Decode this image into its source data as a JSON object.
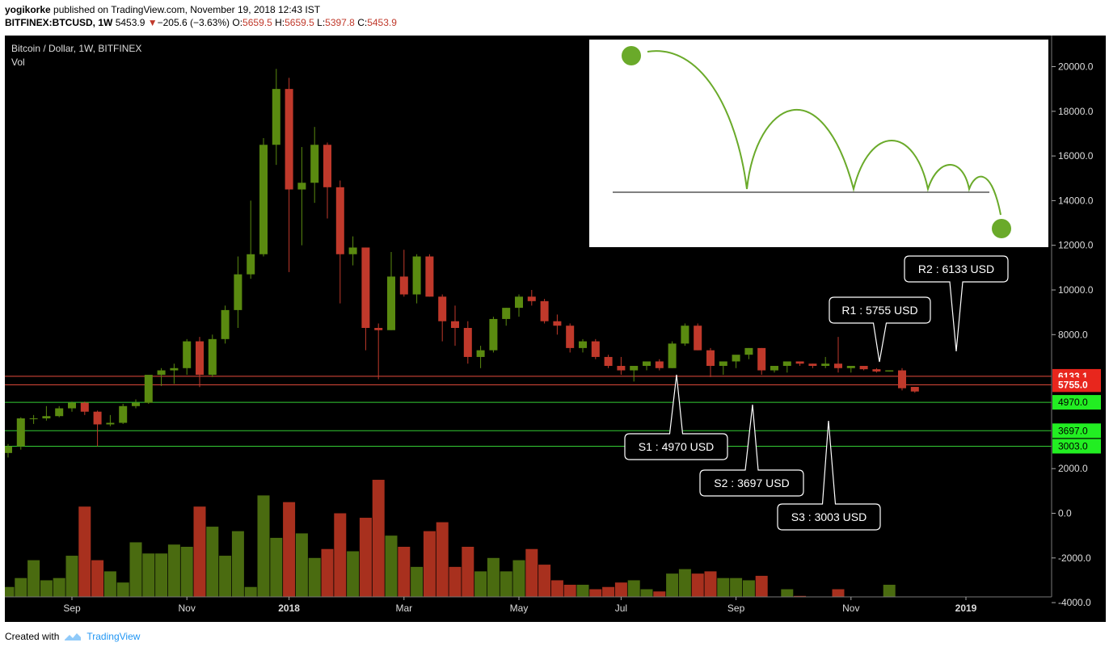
{
  "header": {
    "author": "yogikorke",
    "published": "published on TradingView.com, November 19, 2018 12:43 IST",
    "symbol": "BITFINEX:BTCUSD, 1W",
    "last": "5453.9",
    "change": "−205.6 (−3.63%)",
    "o_label": "O:",
    "o_value": "5659.5",
    "h_label": "H:",
    "h_value": "5659.5",
    "l_label": "L:",
    "l_value": "5397.8",
    "c_label": "C:",
    "c_value": "5453.9"
  },
  "footer": {
    "created_with": "Created with",
    "brand": "TradingView"
  },
  "colors": {
    "up": "#5a8a10",
    "down": "#c0392b",
    "resistance": "#e74c3c",
    "support": "#33cc33",
    "bg": "#000000"
  },
  "chart_data": {
    "type": "candlestick",
    "title": "Bitcoin / Dollar, 1W, BITFINEX",
    "subtitle": "Vol",
    "y_range": [
      -4600,
      20500
    ],
    "y_ticks": [
      "20000.0",
      "18000.0",
      "16000.0",
      "14000.0",
      "12000.0",
      "10000.0",
      "8000.0",
      "2000.0",
      "0.0",
      "-2000.0",
      "-4000.0"
    ],
    "y_tick_values": [
      20000,
      18000,
      16000,
      14000,
      12000,
      10000,
      8000,
      2000,
      0,
      -2000,
      -4000
    ],
    "x_labels": [
      {
        "label": "Sep",
        "i": 5,
        "bold": false
      },
      {
        "label": "Nov",
        "i": 14,
        "bold": false
      },
      {
        "label": "2018",
        "i": 22,
        "bold": true
      },
      {
        "label": "Mar",
        "i": 31,
        "bold": false
      },
      {
        "label": "May",
        "i": 40,
        "bold": false
      },
      {
        "label": "Jul",
        "i": 48,
        "bold": false
      },
      {
        "label": "Sep",
        "i": 57,
        "bold": false
      },
      {
        "label": "Nov",
        "i": 66,
        "bold": false
      },
      {
        "label": "2019",
        "i": 75,
        "bold": true
      }
    ],
    "candles": [
      [
        2700,
        3100,
        2500,
        3000,
        -3300
      ],
      [
        3000,
        4300,
        2850,
        4250,
        -2900
      ],
      [
        4250,
        4400,
        4000,
        4250,
        -2100
      ],
      [
        4250,
        4800,
        4150,
        4350,
        -3000
      ],
      [
        4350,
        4800,
        4300,
        4700,
        -2900
      ],
      [
        4700,
        5000,
        4550,
        4950,
        -1900
      ],
      [
        4950,
        5000,
        4400,
        4550,
        300
      ],
      [
        4550,
        4600,
        3000,
        3980,
        -2100
      ],
      [
        3980,
        4400,
        3900,
        4050,
        -2600
      ],
      [
        4050,
        4900,
        4000,
        4800,
        -3100
      ],
      [
        4800,
        5100,
        4700,
        4950,
        -1300
      ],
      [
        4950,
        6000,
        4900,
        6200,
        -1800
      ],
      [
        6200,
        6500,
        5700,
        6400,
        -1800
      ],
      [
        6400,
        6700,
        5800,
        6500,
        -1400
      ],
      [
        6500,
        7800,
        6200,
        7700,
        -1500
      ],
      [
        7700,
        7900,
        5650,
        6200,
        300
      ],
      [
        6200,
        8000,
        6100,
        7800,
        -600
      ],
      [
        7800,
        9300,
        7600,
        9100,
        -1900
      ],
      [
        9100,
        11500,
        8300,
        10700,
        -800
      ],
      [
        10700,
        14000,
        10500,
        11600,
        -3300
      ],
      [
        11600,
        16800,
        11500,
        16500,
        800
      ],
      [
        16500,
        19900,
        15600,
        19000,
        -1100
      ],
      [
        19000,
        19500,
        10800,
        14500,
        500
      ],
      [
        14500,
        16400,
        12000,
        14800,
        -900
      ],
      [
        14800,
        17300,
        13900,
        16500,
        -2000
      ],
      [
        16500,
        16600,
        13200,
        14600,
        -1600
      ],
      [
        14600,
        14900,
        9400,
        11600,
        0
      ],
      [
        11600,
        12400,
        11100,
        11900,
        -1700
      ],
      [
        11900,
        11900,
        7300,
        8300,
        -200
      ],
      [
        8300,
        8500,
        6000,
        8200,
        1500
      ],
      [
        8200,
        11700,
        8200,
        10600,
        -1000
      ],
      [
        10600,
        11800,
        9700,
        9800,
        -1500
      ],
      [
        9800,
        11600,
        9400,
        11500,
        -2400
      ],
      [
        11500,
        11600,
        9700,
        9700,
        -800
      ],
      [
        9700,
        9800,
        7700,
        8600,
        -400
      ],
      [
        8600,
        9300,
        7500,
        8300,
        -2400
      ],
      [
        8300,
        8600,
        6700,
        7000,
        -1500
      ],
      [
        7000,
        7500,
        6500,
        7300,
        -2600
      ],
      [
        7300,
        8800,
        7200,
        8700,
        -2000
      ],
      [
        8700,
        9200,
        8400,
        9200,
        -2600
      ],
      [
        9200,
        9800,
        8800,
        9700,
        -2100
      ],
      [
        9700,
        10000,
        9300,
        9500,
        -1600
      ],
      [
        9500,
        9600,
        8500,
        8600,
        -2300
      ],
      [
        8600,
        8900,
        8000,
        8400,
        -3000
      ],
      [
        8400,
        8500,
        7200,
        7400,
        -3200
      ],
      [
        7400,
        7800,
        7200,
        7700,
        -3200
      ],
      [
        7700,
        7800,
        6900,
        7000,
        -3400
      ],
      [
        7000,
        7100,
        6500,
        6600,
        -3300
      ],
      [
        6600,
        7000,
        6200,
        6400,
        -3100
      ],
      [
        6400,
        6500,
        5900,
        6600,
        -3000
      ],
      [
        6600,
        6800,
        6400,
        6800,
        -3400
      ],
      [
        6800,
        6900,
        6400,
        6500,
        -3500
      ],
      [
        6500,
        7700,
        6500,
        7600,
        -2700
      ],
      [
        7600,
        8500,
        7500,
        8400,
        -2500
      ],
      [
        8400,
        8500,
        7300,
        7300,
        -2700
      ],
      [
        7300,
        7400,
        6100,
        6600,
        -2600
      ],
      [
        6600,
        6700,
        6200,
        6800,
        -2900
      ],
      [
        6800,
        7000,
        6500,
        7100,
        -2900
      ],
      [
        7100,
        7400,
        6900,
        7400,
        -3000
      ],
      [
        7400,
        7400,
        6200,
        6400,
        -2800
      ],
      [
        6400,
        6600,
        6300,
        6600,
        -3800
      ],
      [
        6600,
        6700,
        6300,
        6800,
        -3400
      ],
      [
        6800,
        6800,
        6600,
        6700,
        -3700
      ],
      [
        6700,
        6700,
        6500,
        6600,
        -4000
      ],
      [
        6600,
        7000,
        6500,
        6700,
        -3800
      ],
      [
        6700,
        7900,
        6300,
        6500,
        -3400
      ],
      [
        6500,
        6600,
        6300,
        6600,
        -4100
      ],
      [
        6600,
        6600,
        6400,
        6450,
        -3900
      ],
      [
        6450,
        6500,
        6300,
        6350,
        -4200
      ],
      [
        6350,
        6400,
        6350,
        6400,
        -3200
      ],
      [
        6400,
        6500,
        5500,
        5600,
        -4600
      ],
      [
        5659.5,
        5659.5,
        5397.8,
        5453.9,
        -4600
      ]
    ],
    "candles_note": "each candle: [open, high, low, close, volume-bar top in price units]",
    "levels": [
      {
        "name": "R2",
        "value": 6133.1,
        "label": "6133.1",
        "kind": "resistance",
        "callout": "R2 : 6133 USD"
      },
      {
        "name": "R1",
        "value": 5755.0,
        "label": "5755.0",
        "kind": "resistance",
        "callout": "R1 : 5755 USD"
      },
      {
        "name": "S1",
        "value": 4970.0,
        "label": "4970.0",
        "kind": "support",
        "callout": "S1 : 4970 USD"
      },
      {
        "name": "S2",
        "value": 3697.0,
        "label": "3697.0",
        "kind": "support",
        "callout": "S2 : 3697 USD"
      },
      {
        "name": "S3",
        "value": 3003.0,
        "label": "3003.0",
        "kind": "support",
        "callout": "S3 : 3003 USD"
      }
    ],
    "inset": {
      "description_icon": "bouncing-ball-icon"
    }
  }
}
